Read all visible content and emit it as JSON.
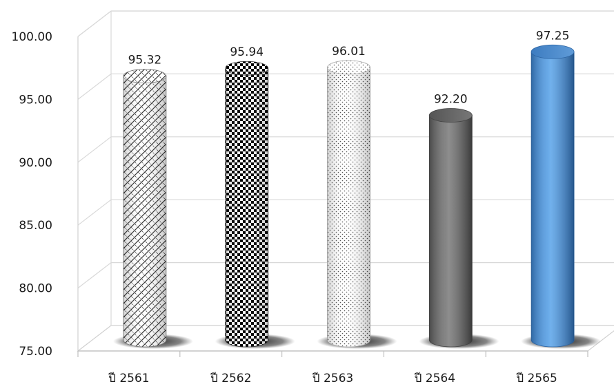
{
  "chart_data": {
    "type": "bar",
    "categories": [
      "ปี 2561",
      "ปี 2562",
      "ปี 2563",
      "ปี 2564",
      "ปี 2565"
    ],
    "values": [
      95.32,
      95.94,
      96.01,
      92.2,
      97.25
    ],
    "value_labels": [
      "95.32",
      "95.94",
      "96.01",
      "92.20",
      "97.25"
    ],
    "ylim": [
      75,
      100
    ],
    "yticks": [
      "75.00",
      "80.00",
      "85.00",
      "90.00",
      "95.00",
      "100.00"
    ],
    "title": "",
    "xlabel": "",
    "ylabel": "",
    "grid": true,
    "legend": "none",
    "bar_styles": [
      "diagonal-weave",
      "checkerboard",
      "fine-dots",
      "solid-gray",
      "solid-blue"
    ]
  }
}
